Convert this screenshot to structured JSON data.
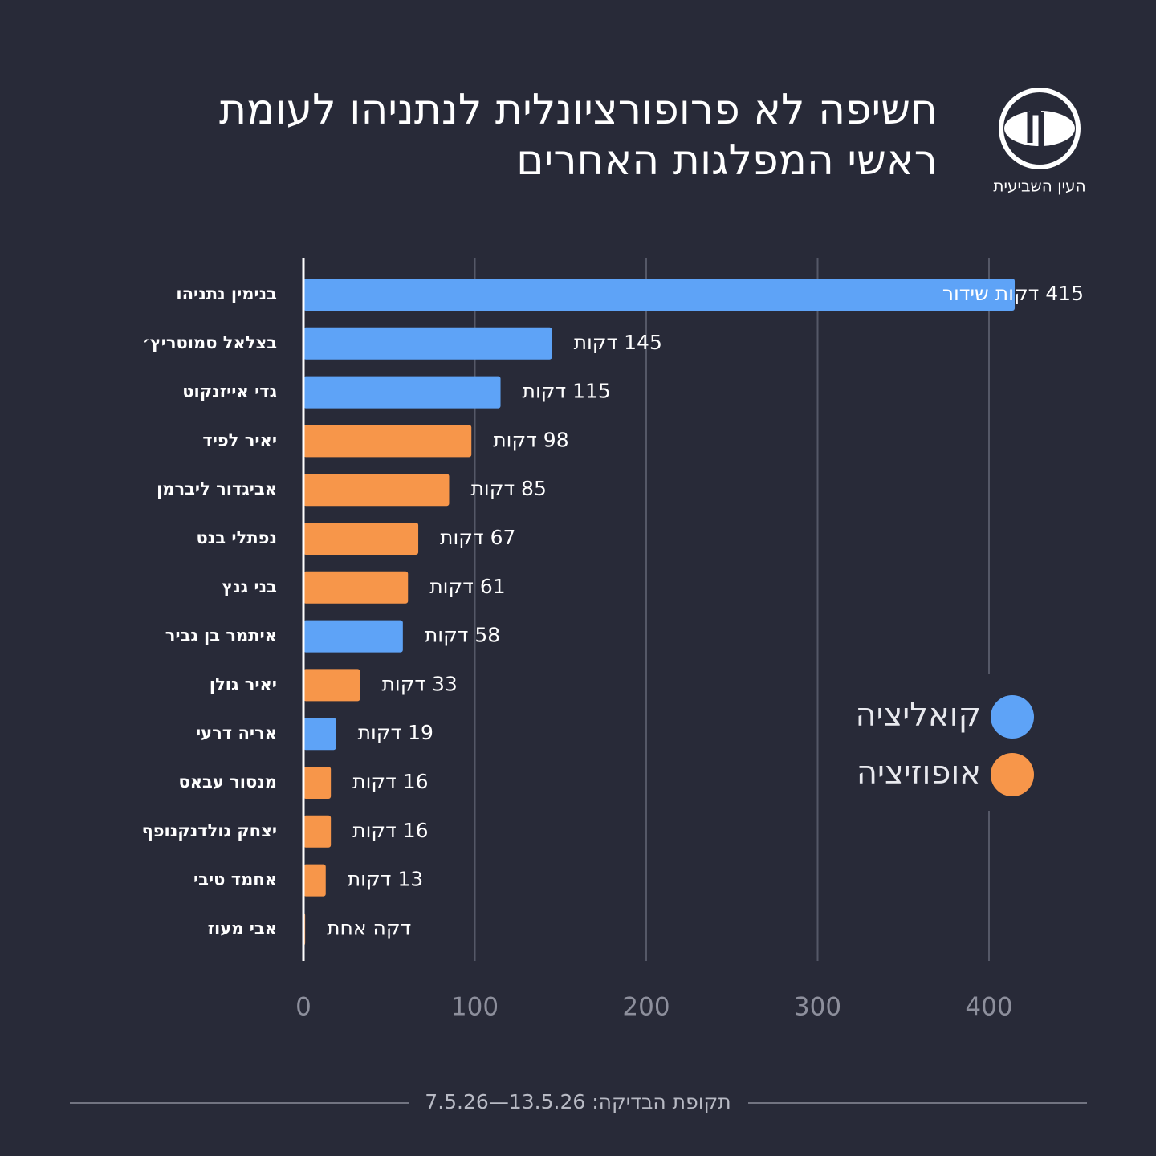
{
  "chart_data": {
    "type": "bar",
    "title": [
      "חשיפה לא פרופורציונלית לנתניהו לעומת",
      "ראשי המפלגות האחרים"
    ],
    "logo_text": "העין השביעית",
    "footer": "תקופת הבדיקה: 13.5.26—7.5.26",
    "orientation": "horizontal",
    "categories": [
      "בנימין נתניהו",
      "בצלאל סמוטריץ׳",
      "גדי אייזנקוט",
      "יאיר לפיד",
      "אביגדור ליברמן",
      "נפתלי בנט",
      "בני גנץ",
      "איתמר בן גביר",
      "יאיר גולן",
      "אריה דרעי",
      "מנסור עבאס",
      "יצחק גולדנקנופף",
      "אחמד טיבי",
      "אבי מעוז"
    ],
    "values": [
      415,
      145,
      115,
      98,
      85,
      67,
      61,
      58,
      33,
      19,
      16,
      16,
      13,
      1
    ],
    "value_labels": [
      "415 דקות שידור",
      "145 דקות",
      "115 דקות",
      "98 דקות",
      "85 דקות",
      "67 דקות",
      "61 דקות",
      "58 דקות",
      "33 דקות",
      "19 דקות",
      "16 דקות",
      "16 דקות",
      "13 דקות",
      "דקה אחת"
    ],
    "colors": [
      "#5ea3f7",
      "#5ea3f7",
      "#5ea3f7",
      "#f7964a",
      "#f7964a",
      "#f7964a",
      "#f7964a",
      "#5ea3f7",
      "#f7964a",
      "#5ea3f7",
      "#f7964a",
      "#f7964a",
      "#f7964a",
      "#f7964a"
    ],
    "legend": [
      {
        "label": "קואליציה",
        "color": "#5ea3f7"
      },
      {
        "label": "אופוזיציה",
        "color": "#f7964a"
      }
    ],
    "xlim": [
      0,
      420
    ],
    "xticks": [
      0,
      100,
      200,
      300,
      400
    ],
    "grid": true
  }
}
